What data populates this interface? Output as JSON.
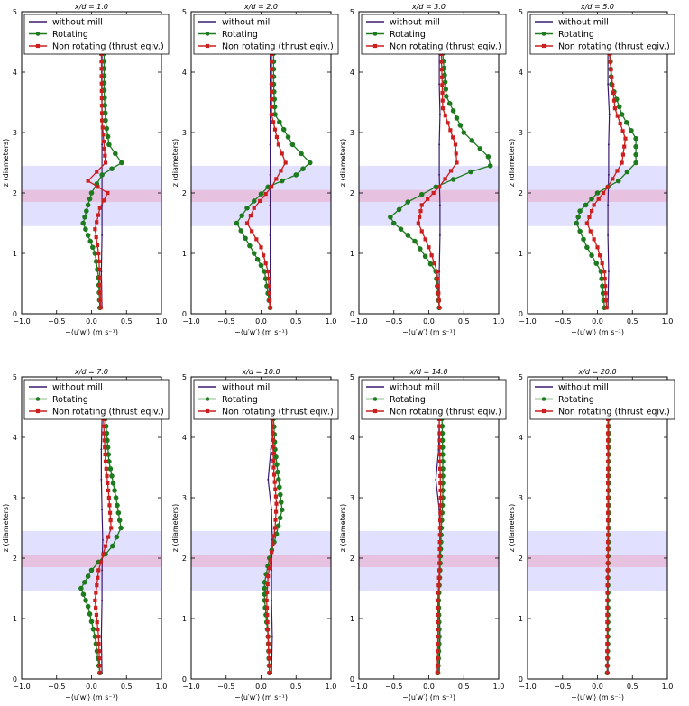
{
  "figure": {
    "description_none": "",
    "common": {
      "xlabel": "−⟨u′w′⟩ (m s⁻¹)",
      "ylabel": "z (diameters)",
      "xlim": [
        -1.0,
        1.0
      ],
      "ylim": [
        0,
        5
      ],
      "xticks": [
        "−1.0",
        "−0.5",
        "0.0",
        "0.5",
        "1.0"
      ],
      "yticks": [
        "0",
        "1",
        "2",
        "3",
        "4",
        "5"
      ],
      "legend": [
        "without mill",
        "Rotating",
        "Non rotating (thrust eqiv.)"
      ],
      "colors": {
        "without_mill": "#3b1a6e",
        "rotating": "#1e7a1e",
        "non_rotating": "#cc1f1f",
        "rotor_band": "#c8c8ff",
        "hub_band": "#e8b6d6"
      }
    }
  },
  "chart_data": [
    {
      "type": "line",
      "title": "x/d = 1.0",
      "xlabel": "−⟨u′w′⟩ (m s⁻¹)",
      "ylabel": "z (diameters)",
      "xlim": [
        -1.0,
        1.0
      ],
      "ylim": [
        0,
        5
      ],
      "bands": [
        {
          "from": 1.45,
          "to": 2.45,
          "name": "rotor"
        },
        {
          "from": 1.85,
          "to": 2.05,
          "name": "hub"
        }
      ],
      "series": [
        {
          "name": "without mill",
          "x": [
            0.15,
            0.14,
            0.15,
            0.15,
            0.15,
            0.15,
            0.15,
            0.15,
            0.15
          ],
          "y": [
            0.1,
            0.7,
            1.3,
            1.8,
            2.3,
            2.8,
            3.3,
            3.8,
            4.3
          ]
        },
        {
          "name": "Rotating",
          "x": [
            0.12,
            0.1,
            0.05,
            -0.05,
            -0.12,
            -0.05,
            0.0,
            0.15,
            0.43,
            0.25,
            0.2,
            0.18,
            0.18
          ],
          "y": [
            0.1,
            0.6,
            1.0,
            1.3,
            1.5,
            1.8,
            2.0,
            2.3,
            2.5,
            2.8,
            3.2,
            3.7,
            4.3
          ]
        },
        {
          "name": "Non rotating (thrust eqiv.)",
          "x": [
            0.13,
            0.12,
            0.1,
            0.05,
            0.12,
            0.23,
            -0.05,
            0.2,
            0.15,
            0.14
          ],
          "y": [
            0.1,
            0.6,
            1.0,
            1.4,
            1.75,
            2.0,
            2.2,
            2.5,
            3.2,
            4.3
          ]
        }
      ]
    },
    {
      "type": "line",
      "title": "x/d = 2.0",
      "xlabel": "−⟨u′w′⟩ (m s⁻¹)",
      "ylabel": "z (diameters)",
      "xlim": [
        -1.0,
        1.0
      ],
      "ylim": [
        0,
        5
      ],
      "bands": [
        {
          "from": 1.45,
          "to": 2.45,
          "name": "rotor"
        },
        {
          "from": 1.85,
          "to": 2.05,
          "name": "hub"
        }
      ],
      "series": [
        {
          "name": "without mill",
          "x": [
            0.13,
            0.13,
            0.13,
            0.13,
            0.13,
            0.13,
            0.13,
            0.13,
            0.13
          ],
          "y": [
            0.1,
            0.7,
            1.3,
            1.8,
            2.3,
            2.8,
            3.3,
            3.8,
            4.3
          ]
        },
        {
          "name": "Rotating",
          "x": [
            0.13,
            0.05,
            -0.1,
            -0.35,
            -0.2,
            0.1,
            0.5,
            0.7,
            0.45,
            0.2,
            0.18,
            0.18
          ],
          "y": [
            0.1,
            0.7,
            1.0,
            1.5,
            1.75,
            2.1,
            2.3,
            2.5,
            2.8,
            3.3,
            3.8,
            4.3
          ]
        },
        {
          "name": "Non rotating (thrust eqiv.)",
          "x": [
            0.13,
            0.1,
            0.0,
            -0.2,
            -0.1,
            0.15,
            0.35,
            0.25,
            0.15,
            0.15
          ],
          "y": [
            0.1,
            0.7,
            1.1,
            1.5,
            1.75,
            2.1,
            2.5,
            2.8,
            3.3,
            4.3
          ]
        }
      ]
    },
    {
      "type": "line",
      "title": "x/d = 3.0",
      "xlabel": "−⟨u′w′⟩ (m s⁻¹)",
      "ylabel": "z (diameters)",
      "xlim": [
        -1.0,
        1.0
      ],
      "ylim": [
        0,
        5
      ],
      "bands": [
        {
          "from": 1.45,
          "to": 2.45,
          "name": "rotor"
        },
        {
          "from": 1.85,
          "to": 2.05,
          "name": "hub"
        }
      ],
      "series": [
        {
          "name": "without mill",
          "x": [
            0.15,
            0.15,
            0.16,
            0.16,
            0.15,
            0.15,
            0.16,
            0.15,
            0.15
          ],
          "y": [
            0.1,
            0.7,
            1.3,
            1.8,
            2.3,
            2.8,
            3.3,
            3.8,
            4.3
          ]
        },
        {
          "name": "Rotating",
          "x": [
            0.15,
            0.1,
            -0.2,
            -0.5,
            -0.55,
            -0.3,
            0.1,
            0.6,
            0.88,
            0.85,
            0.5,
            0.25,
            0.2
          ],
          "y": [
            0.1,
            0.7,
            1.2,
            1.5,
            1.6,
            1.85,
            2.1,
            2.35,
            2.45,
            2.6,
            3.0,
            3.6,
            4.3
          ]
        },
        {
          "name": "Non rotating (thrust eqiv.)",
          "x": [
            0.15,
            0.12,
            0.0,
            -0.15,
            -0.1,
            0.15,
            0.4,
            0.38,
            0.2,
            0.18
          ],
          "y": [
            0.1,
            0.7,
            1.1,
            1.5,
            1.8,
            2.1,
            2.5,
            2.8,
            3.4,
            4.3
          ]
        }
      ]
    },
    {
      "type": "line",
      "title": "x/d = 5.0",
      "xlabel": "−⟨u′w′⟩ (m s⁻¹)",
      "ylabel": "z (diameters)",
      "xlim": [
        -1.0,
        1.0
      ],
      "ylim": [
        0,
        5
      ],
      "bands": [
        {
          "from": 1.45,
          "to": 2.45,
          "name": "rotor"
        },
        {
          "from": 1.85,
          "to": 2.05,
          "name": "hub"
        }
      ],
      "series": [
        {
          "name": "without mill",
          "x": [
            0.15,
            0.16,
            0.15,
            0.15,
            0.16,
            0.16,
            0.17,
            0.15,
            0.15
          ],
          "y": [
            0.1,
            0.7,
            1.3,
            1.8,
            2.3,
            2.8,
            3.3,
            3.8,
            4.3
          ]
        },
        {
          "name": "Rotating",
          "x": [
            0.1,
            0.05,
            -0.15,
            -0.3,
            -0.25,
            0.0,
            0.3,
            0.55,
            0.55,
            0.35,
            0.2,
            0.18
          ],
          "y": [
            0.1,
            0.7,
            1.1,
            1.5,
            1.7,
            2.0,
            2.2,
            2.5,
            2.9,
            3.3,
            3.8,
            4.3
          ]
        },
        {
          "name": "Non rotating (thrust eqiv.)",
          "x": [
            0.13,
            0.1,
            0.0,
            -0.15,
            -0.05,
            0.15,
            0.35,
            0.4,
            0.25,
            0.17
          ],
          "y": [
            0.1,
            0.7,
            1.1,
            1.5,
            1.8,
            2.1,
            2.5,
            2.9,
            3.4,
            4.3
          ]
        }
      ]
    },
    {
      "type": "line",
      "title": "x/d = 7.0",
      "xlabel": "−⟨u′w′⟩ (m s⁻¹)",
      "ylabel": "z (diameters)",
      "xlim": [
        -1.0,
        1.0
      ],
      "ylim": [
        0,
        5
      ],
      "bands": [
        {
          "from": 1.45,
          "to": 2.45,
          "name": "rotor"
        },
        {
          "from": 1.85,
          "to": 2.05,
          "name": "hub"
        }
      ],
      "series": [
        {
          "name": "without mill",
          "x": [
            0.15,
            0.14,
            0.15,
            0.15,
            0.16,
            0.15,
            0.14,
            0.14,
            0.15
          ],
          "y": [
            0.1,
            0.7,
            1.3,
            1.8,
            2.3,
            2.8,
            3.3,
            3.8,
            4.3
          ]
        },
        {
          "name": "Rotating",
          "x": [
            0.12,
            0.05,
            -0.05,
            -0.15,
            0.0,
            0.3,
            0.42,
            0.35,
            0.25,
            0.2
          ],
          "y": [
            0.1,
            0.7,
            1.2,
            1.5,
            1.8,
            2.2,
            2.5,
            3.0,
            3.6,
            4.3
          ]
        },
        {
          "name": "Non rotating (thrust eqiv.)",
          "x": [
            0.12,
            0.1,
            0.05,
            0.1,
            0.2,
            0.28,
            0.25,
            0.2,
            0.17
          ],
          "y": [
            0.1,
            0.7,
            1.3,
            1.8,
            2.2,
            2.5,
            3.0,
            3.6,
            4.3
          ]
        }
      ]
    },
    {
      "type": "line",
      "title": "x/d = 10.0",
      "xlabel": "−⟨u′w′⟩ (m s⁻¹)",
      "ylabel": "z (diameters)",
      "xlim": [
        -1.0,
        1.0
      ],
      "ylim": [
        0,
        5
      ],
      "bands": [
        {
          "from": 1.45,
          "to": 2.45,
          "name": "rotor"
        },
        {
          "from": 1.85,
          "to": 2.05,
          "name": "hub"
        }
      ],
      "series": [
        {
          "name": "without mill",
          "x": [
            0.15,
            0.16,
            0.15,
            0.15,
            0.16,
            0.15,
            0.1,
            0.14,
            0.15
          ],
          "y": [
            0.1,
            0.7,
            1.3,
            1.8,
            2.3,
            2.8,
            3.3,
            3.8,
            4.3
          ]
        },
        {
          "name": "Rotating",
          "x": [
            0.12,
            0.1,
            0.05,
            0.05,
            0.12,
            0.22,
            0.3,
            0.25,
            0.2,
            0.18
          ],
          "y": [
            0.1,
            0.7,
            1.3,
            1.6,
            2.0,
            2.4,
            2.8,
            3.3,
            3.8,
            4.3
          ]
        },
        {
          "name": "Non rotating (thrust eqiv.)",
          "x": [
            0.12,
            0.1,
            0.08,
            0.1,
            0.15,
            0.2,
            0.22,
            0.18,
            0.16
          ],
          "y": [
            0.1,
            0.7,
            1.3,
            1.7,
            2.1,
            2.5,
            2.9,
            3.5,
            4.3
          ]
        }
      ]
    },
    {
      "type": "line",
      "title": "x/d = 14.0",
      "xlabel": "−⟨u′w′⟩ (m s⁻¹)",
      "ylabel": "z (diameters)",
      "xlim": [
        -1.0,
        1.0
      ],
      "ylim": [
        0,
        5
      ],
      "bands": [
        {
          "from": 1.45,
          "to": 2.45,
          "name": "rotor"
        },
        {
          "from": 1.85,
          "to": 2.05,
          "name": "hub"
        }
      ],
      "series": [
        {
          "name": "without mill",
          "x": [
            0.15,
            0.16,
            0.15,
            0.15,
            0.16,
            0.15,
            0.1,
            0.14,
            0.15
          ],
          "y": [
            0.1,
            0.7,
            1.3,
            1.8,
            2.3,
            2.8,
            3.3,
            3.8,
            4.3
          ]
        },
        {
          "name": "Rotating",
          "x": [
            0.13,
            0.15,
            0.14,
            0.16,
            0.18,
            0.2,
            0.2,
            0.19
          ],
          "y": [
            0.1,
            0.7,
            1.3,
            1.8,
            2.5,
            3.0,
            3.6,
            4.3
          ]
        },
        {
          "name": "Non rotating (thrust eqiv.)",
          "x": [
            0.12,
            0.13,
            0.13,
            0.15,
            0.16,
            0.17,
            0.16,
            0.15
          ],
          "y": [
            0.1,
            0.7,
            1.3,
            1.8,
            2.5,
            3.0,
            3.6,
            4.3
          ]
        }
      ]
    },
    {
      "type": "line",
      "title": "x/d = 20.0",
      "xlabel": "−⟨u′w′⟩ (m s⁻¹)",
      "ylabel": "z (diameters)",
      "xlim": [
        -1.0,
        1.0
      ],
      "ylim": [
        0,
        5
      ],
      "bands": [
        {
          "from": 1.45,
          "to": 2.45,
          "name": "rotor"
        },
        {
          "from": 1.85,
          "to": 2.05,
          "name": "hub"
        }
      ],
      "series": [
        {
          "name": "without mill",
          "x": [
            0.15,
            0.15,
            0.15,
            0.15,
            0.15,
            0.15,
            0.15,
            0.15,
            0.15
          ],
          "y": [
            0.1,
            0.7,
            1.3,
            1.8,
            2.3,
            2.8,
            3.3,
            3.8,
            4.3
          ]
        },
        {
          "name": "Rotating",
          "x": [
            0.14,
            0.15,
            0.15,
            0.15,
            0.16,
            0.16,
            0.16,
            0.16
          ],
          "y": [
            0.1,
            0.7,
            1.3,
            1.8,
            2.5,
            3.0,
            3.6,
            4.3
          ]
        },
        {
          "name": "Non rotating (thrust eqiv.)",
          "x": [
            0.14,
            0.14,
            0.14,
            0.15,
            0.15,
            0.15,
            0.15,
            0.15
          ],
          "y": [
            0.1,
            0.7,
            1.3,
            1.8,
            2.5,
            3.0,
            3.6,
            4.3
          ]
        }
      ]
    }
  ]
}
